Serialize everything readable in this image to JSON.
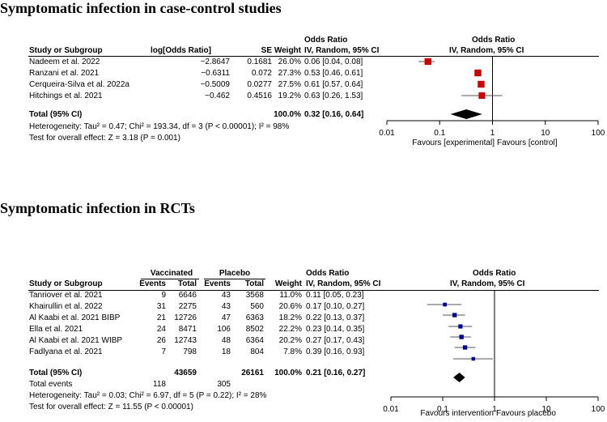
{
  "section1": {
    "title": "Symptomatic infection in case-control studies",
    "header": {
      "or_top": "Odds Ratio",
      "study": "Study or Subgroup",
      "log_or": "log[Odds Ratio]",
      "se": "SE",
      "weight": "Weight",
      "or_method": "IV, Random, 95% CI",
      "plot_top": "Odds Ratio",
      "plot_method": "IV, Random, 95% CI"
    },
    "rows": [
      {
        "study": "Nadeem et al. 2022",
        "log_or": "−2.8647",
        "se": "0.1681",
        "weight": "26.0%",
        "ci": "0.06 [0.04, 0.08]"
      },
      {
        "study": "Ranzani et al. 2021",
        "log_or": "−0.6311",
        "se": "0.072",
        "weight": "27.3%",
        "ci": "0.53 [0.46, 0.61]"
      },
      {
        "study": "Cerqueira-Silva et al. 2022a",
        "log_or": "−0.5009",
        "se": "0.0277",
        "weight": "27.5%",
        "ci": "0.61 [0.57, 0.64]"
      },
      {
        "study": "Hitchings et al. 2021",
        "log_or": "−0.462",
        "se": "0.4516",
        "weight": "19.2%",
        "ci": "0.63 [0.26, 1.53]"
      }
    ],
    "total": {
      "label": "Total (95% CI)",
      "weight": "100.0%",
      "ci": "0.32 [0.16, 0.64]"
    },
    "heterogeneity": "Heterogeneity: Tau² = 0.47; Chi² = 193.34, df = 3 (P < 0.00001); I² = 98%",
    "overall": "Test for overall effect: Z = 3.18 (P = 0.001)",
    "favours_left": "Favours [experimental]",
    "favours_right": "Favours [control]"
  },
  "section2": {
    "title": "Symptomatic infection in RCTs",
    "header": {
      "vaccinated": "Vaccinated",
      "placebo": "Placebo",
      "or_top": "Odds Ratio",
      "study": "Study or Subgroup",
      "events1": "Events",
      "total1": "Total",
      "events2": "Events",
      "total2": "Total",
      "weight": "Weight",
      "or_method": "IV, Random, 95% CI",
      "plot_top": "Odds Ratio",
      "plot_method": "IV, Random, 95% CI"
    },
    "rows": [
      {
        "study": "Tanriover et al. 2021",
        "e1": "9",
        "t1": "6646",
        "e2": "43",
        "t2": "3568",
        "weight": "11.0%",
        "ci": "0.11 [0.05, 0.23]"
      },
      {
        "study": "Khairullin et al. 2022",
        "e1": "31",
        "t1": "2275",
        "e2": "43",
        "t2": "560",
        "weight": "20.6%",
        "ci": "0.17 [0.10, 0.27]"
      },
      {
        "study": "Al Kaabi et al. 2021 BIBP",
        "e1": "21",
        "t1": "12726",
        "e2": "47",
        "t2": "6363",
        "weight": "18.2%",
        "ci": "0.22 [0.13, 0.37]"
      },
      {
        "study": "Ella et al. 2021",
        "e1": "24",
        "t1": "8471",
        "e2": "106",
        "t2": "8502",
        "weight": "22.2%",
        "ci": "0.23 [0.14, 0.35]"
      },
      {
        "study": "Al Kaabi et al. 2021 WIBP",
        "e1": "26",
        "t1": "12743",
        "e2": "48",
        "t2": "6364",
        "weight": "20.2%",
        "ci": "0.27 [0.17, 0.43]"
      },
      {
        "study": "Fadlyana et al. 2021",
        "e1": "7",
        "t1": "798",
        "e2": "18",
        "t2": "804",
        "weight": "7.8%",
        "ci": "0.39 [0.16, 0.93]"
      }
    ],
    "total": {
      "label": "Total (95% CI)",
      "t1": "43659",
      "t2": "26161",
      "weight": "100.0%",
      "ci": "0.21 [0.16, 0.27]"
    },
    "total_events": {
      "label": "Total events",
      "e1": "118",
      "e2": "305"
    },
    "heterogeneity": "Heterogeneity: Tau² = 0.03; Chi² = 6.97, df = 5 (P = 0.22); I² = 28%",
    "overall": "Test for overall effect: Z = 11.55 (P < 0.00001)",
    "favours_left": "Favours intervention",
    "favours_right": "Favours placebo"
  },
  "colors": {
    "square1": "#cc0000",
    "square2": "#000099",
    "diamond": "#000000"
  },
  "chart_data": [
    {
      "type": "forest",
      "title": "Symptomatic infection in case-control studies",
      "scale": "log",
      "xlim": [
        0.01,
        100
      ],
      "ticks": [
        "0.01",
        "0.1",
        "1",
        "10",
        "100"
      ],
      "tick_values": [
        0.01,
        0.1,
        1,
        10,
        100
      ],
      "studies": [
        {
          "name": "Nadeem et al. 2022",
          "or": 0.06,
          "lo": 0.04,
          "hi": 0.08,
          "weight": 26.0
        },
        {
          "name": "Ranzani et al. 2021",
          "or": 0.53,
          "lo": 0.46,
          "hi": 0.61,
          "weight": 27.3
        },
        {
          "name": "Cerqueira-Silva et al. 2022a",
          "or": 0.61,
          "lo": 0.57,
          "hi": 0.64,
          "weight": 27.5
        },
        {
          "name": "Hitchings et al. 2021",
          "or": 0.63,
          "lo": 0.26,
          "hi": 1.53,
          "weight": 19.2
        }
      ],
      "pooled": {
        "or": 0.32,
        "lo": 0.16,
        "hi": 0.64
      }
    },
    {
      "type": "forest",
      "title": "Symptomatic infection in RCTs",
      "scale": "log",
      "xlim": [
        0.01,
        100
      ],
      "ticks": [
        "0.01",
        "0.1",
        "1",
        "10",
        "100"
      ],
      "tick_values": [
        0.01,
        0.1,
        1,
        10,
        100
      ],
      "studies": [
        {
          "name": "Tanriover et al. 2021",
          "or": 0.11,
          "lo": 0.05,
          "hi": 0.23,
          "weight": 11.0
        },
        {
          "name": "Khairullin et al. 2022",
          "or": 0.17,
          "lo": 0.1,
          "hi": 0.27,
          "weight": 20.6
        },
        {
          "name": "Al Kaabi et al. 2021 BIBP",
          "or": 0.22,
          "lo": 0.13,
          "hi": 0.37,
          "weight": 18.2
        },
        {
          "name": "Ella et al. 2021",
          "or": 0.23,
          "lo": 0.14,
          "hi": 0.35,
          "weight": 22.2
        },
        {
          "name": "Al Kaabi et al. 2021 WIBP",
          "or": 0.27,
          "lo": 0.17,
          "hi": 0.43,
          "weight": 20.2
        },
        {
          "name": "Fadlyana et al. 2021",
          "or": 0.39,
          "lo": 0.16,
          "hi": 0.93,
          "weight": 7.8
        }
      ],
      "pooled": {
        "or": 0.21,
        "lo": 0.16,
        "hi": 0.27
      }
    }
  ]
}
